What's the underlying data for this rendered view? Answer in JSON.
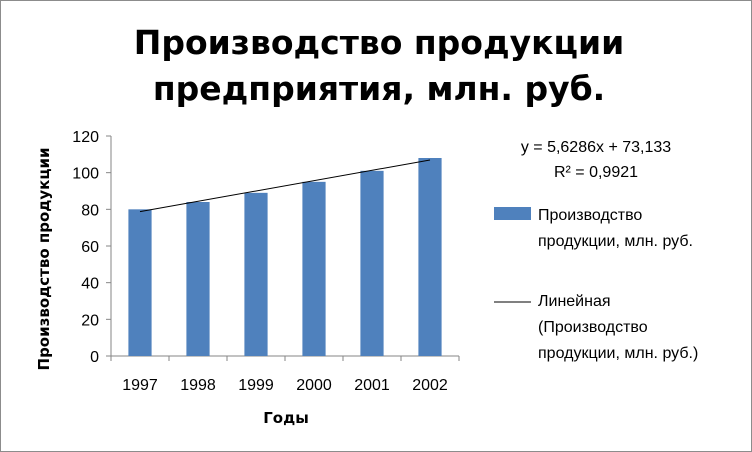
{
  "chart_data": {
    "type": "bar",
    "title_lines": [
      "Производство продукции",
      "предприятия, млн. руб."
    ],
    "xlabel": "Годы",
    "ylabel": "Производство продукции",
    "categories": [
      "1997",
      "1998",
      "1999",
      "2000",
      "2001",
      "2002"
    ],
    "series": [
      {
        "name": "Производство продукции, млн. руб.",
        "values": [
          80,
          84,
          89,
          95,
          101,
          108
        ],
        "color": "#4F81BD"
      }
    ],
    "trendline": {
      "type": "linear",
      "equation": "y = 5,6286x + 73,133",
      "r_squared": "R² = 0,9921",
      "slope": 5.6286,
      "intercept": 73.133,
      "legend_label_lines": [
        "Линейная",
        "(Производство",
        "продукции, млн. руб.)"
      ],
      "color": "#000000"
    },
    "legend": {
      "placement": "right",
      "series_label_lines": [
        "Производство",
        "продукции, млн. руб."
      ]
    },
    "ylim": [
      0,
      120
    ],
    "yticks": [
      0,
      20,
      40,
      60,
      80,
      100,
      120
    ],
    "grid": false
  }
}
